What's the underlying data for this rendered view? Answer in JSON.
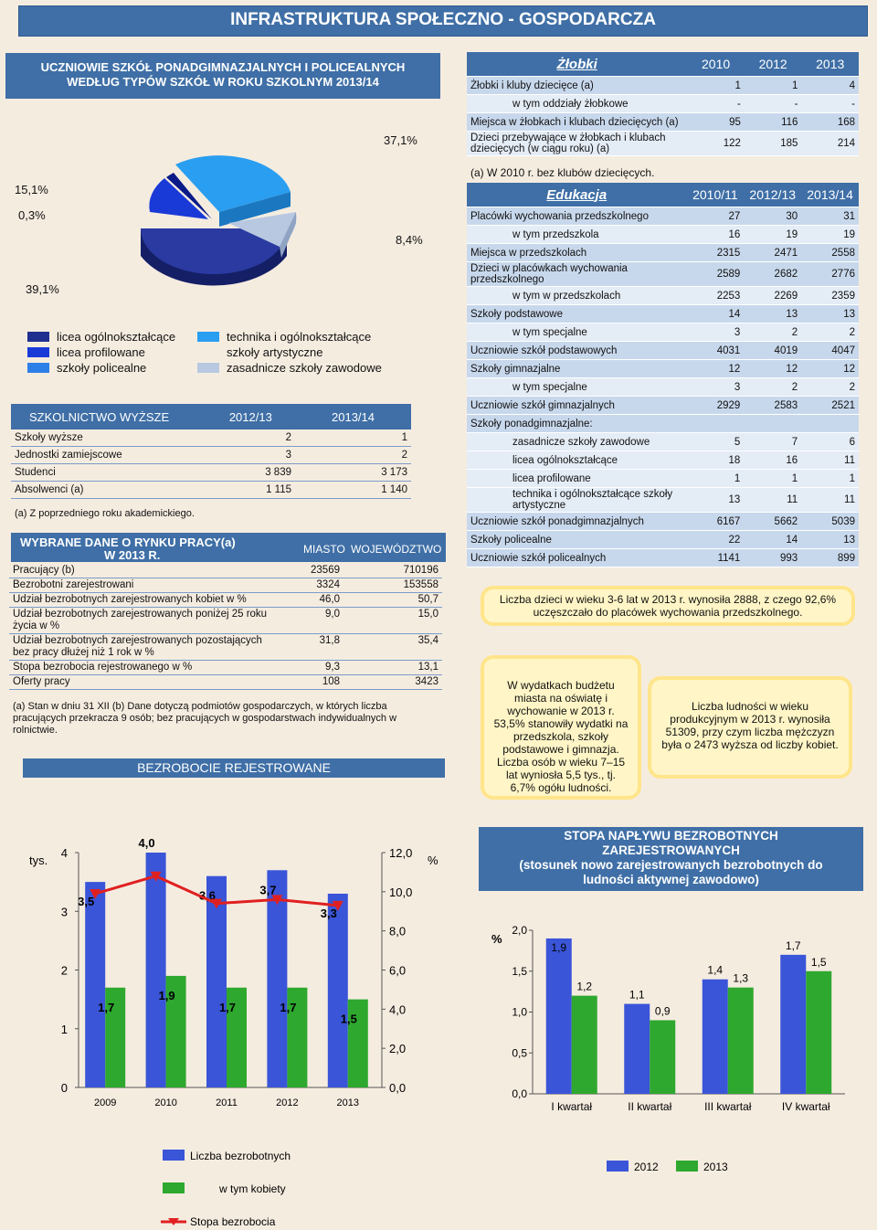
{
  "title": "INFRASTRUKTURA SPOŁECZNO - GOSPODARCZA",
  "pie": {
    "heading_line1": "UCZNIOWIE SZKÓŁ PONADGIMNAZJALNYCH I POLICEALNYCH",
    "heading_line2": "WEDŁUG TYPÓW SZKÓŁ W ROKU SZKOLNYM 2013/14",
    "labels": [
      "39,1%",
      "15,1%",
      "0,3%",
      "37,1%",
      "8,4%"
    ],
    "legend_left": [
      "licea ogólnokształcące",
      "licea profilowane",
      "szkoły policealne"
    ],
    "legend_right": [
      "technika i ogólnokształcące",
      "szkoły artystyczne",
      "zasadnicze szkoły zawodowe"
    ],
    "colors": {
      "licea_og": "#1f2f8f",
      "licea_prof": "#1a3ad8",
      "policealne": "#2f7fe8",
      "technika": "#2a9ef0",
      "zasadnicze": "#b8c8e0"
    }
  },
  "higher": {
    "header": [
      "SZKOLNICTWO WYŻSZE",
      "2012/13",
      "2013/14"
    ],
    "rows": [
      [
        "Szkoły wyższe",
        "2",
        "1"
      ],
      [
        "Jednostki zamiejscowe",
        "3",
        "2"
      ],
      [
        "Studenci",
        "3 839",
        "3 173"
      ],
      [
        "Absolwenci (a)",
        "1 115",
        "1 140"
      ]
    ],
    "note": "(a) Z poprzedniego roku akademickiego."
  },
  "labour": {
    "title_line1": "WYBRANE DANE O RYNKU PRACY(a)",
    "title_line2": "W 2013 R.",
    "col1": "MIASTO",
    "col2": "WOJEWÓDZTWO",
    "rows": [
      [
        "Pracujący (b)",
        "23569",
        "710196"
      ],
      [
        "Bezrobotni zarejestrowani",
        "3324",
        "153558"
      ],
      [
        "Udział bezrobotnych zarejestrowanych kobiet w %",
        "46,0",
        "50,7"
      ],
      [
        "Udział bezrobotnych zarejestrowanych poniżej 25 roku życia w %",
        "9,0",
        "15,0"
      ],
      [
        "Udział bezrobotnych zarejestrowanych pozostających bez pracy dłużej niż 1 rok w %",
        "31,8",
        "35,4"
      ],
      [
        "Stopa bezrobocia rejestrowanego w %",
        "9,3",
        "13,1"
      ],
      [
        "Oferty pracy",
        "108",
        "3423"
      ]
    ],
    "note": "(a) Stan w dniu 31 XII (b) Dane dotyczą podmiotów gospodarczych, w których liczba pracujących przekracza 9 osób; bez pracujących w gospodarstwach indywidualnych w rolnictwie."
  },
  "zlobki": {
    "header": [
      "Żłobki",
      "2010",
      "2012",
      "2013"
    ],
    "rows": [
      {
        "label": "Żłobki i kluby dziecięce (a)",
        "v": [
          "1",
          "1",
          "4"
        ],
        "indent": false
      },
      {
        "label": "w tym oddziały żłobkowe",
        "v": [
          "-",
          "-",
          "-"
        ],
        "indent": true
      },
      {
        "label": "Miejsca w żłobkach i klubach dziecięcych (a)",
        "v": [
          "95",
          "116",
          "168"
        ],
        "indent": false
      },
      {
        "label": "Dzieci przebywające w żłobkach i klubach dziecięcych (w ciągu roku) (a)",
        "v": [
          "122",
          "185",
          "214"
        ],
        "indent": false
      }
    ],
    "note": "(a) W 2010 r. bez klubów dziecięcych."
  },
  "edukacja": {
    "header": [
      "Edukacja",
      "2010/11",
      "2012/13",
      "2013/14"
    ],
    "rows": [
      {
        "label": "Placówki wychowania przedszkolnego",
        "v": [
          "27",
          "30",
          "31"
        ],
        "indent": false
      },
      {
        "label": "w tym przedszkola",
        "v": [
          "16",
          "19",
          "19"
        ],
        "indent": true
      },
      {
        "label": "Miejsca w przedszkolach",
        "v": [
          "2315",
          "2471",
          "2558"
        ],
        "indent": false
      },
      {
        "label": "Dzieci w placówkach wychowania przedszkolnego",
        "v": [
          "2589",
          "2682",
          "2776"
        ],
        "indent": false
      },
      {
        "label": "w tym w przedszkolach",
        "v": [
          "2253",
          "2269",
          "2359"
        ],
        "indent": true
      },
      {
        "label": "Szkoły podstawowe",
        "v": [
          "14",
          "13",
          "13"
        ],
        "indent": false
      },
      {
        "label": "w tym specjalne",
        "v": [
          "3",
          "2",
          "2"
        ],
        "indent": true
      },
      {
        "label": "Uczniowie szkół podstawowych",
        "v": [
          "4031",
          "4019",
          "4047"
        ],
        "indent": false
      },
      {
        "label": "Szkoły gimnazjalne",
        "v": [
          "12",
          "12",
          "12"
        ],
        "indent": false
      },
      {
        "label": "w tym specjalne",
        "v": [
          "3",
          "2",
          "2"
        ],
        "indent": true
      },
      {
        "label": "Uczniowie szkół gimnazjalnych",
        "v": [
          "2929",
          "2583",
          "2521"
        ],
        "indent": false
      },
      {
        "label": "Szkoły ponadgimnazjalne:",
        "v": [
          "",
          "",
          ""
        ],
        "indent": false
      },
      {
        "label": "zasadnicze szkoły zawodowe",
        "v": [
          "5",
          "7",
          "6"
        ],
        "indent": true
      },
      {
        "label": "licea ogólnokształcące",
        "v": [
          "18",
          "16",
          "11"
        ],
        "indent": true
      },
      {
        "label": "licea profilowane",
        "v": [
          "1",
          "1",
          "1"
        ],
        "indent": true
      },
      {
        "label": "technika i ogólnokształcące szkoły artystyczne",
        "v": [
          "13",
          "11",
          "11"
        ],
        "indent": true
      },
      {
        "label": "Uczniowie szkół ponadgimnazjalnych",
        "v": [
          "6167",
          "5662",
          "5039"
        ],
        "indent": false
      },
      {
        "label": "Szkoły policealne",
        "v": [
          "22",
          "14",
          "13"
        ],
        "indent": false
      },
      {
        "label": "Uczniowie szkół policealnych",
        "v": [
          "1141",
          "993",
          "899"
        ],
        "indent": false
      }
    ]
  },
  "bubbles": {
    "b1": "Liczba dzieci w wieku 3-6 lat w 2013 r. wynosiła 2888, z czego 92,6% uczęszczało do placówek wychowania przedszkolnego.",
    "b2": "W wydatkach budżetu miasta na oświatę i wychowanie w 2013 r. 53,5% stanowiły wydatki na przedszkola, szkoły podstawowe i gimnazja. Liczba osób w wieku 7–15 lat wyniosła 5,5 tys., tj. 6,7% ogółu ludności.",
    "b3": "Liczba ludności w wieku produkcyjnym w 2013 r. wynosiła 51309, przy czym liczba mężczyzn była o 2473 wyższa od liczby kobiet."
  },
  "bezrobocie_title": "BEZROBOCIE REJESTROWANE",
  "chart_data": [
    {
      "type": "bar",
      "categories": [
        "2009",
        "2010",
        "2011",
        "2012",
        "2013"
      ],
      "series": [
        {
          "name": "Liczba bezrobotnych",
          "values": [
            3.5,
            4.0,
            3.6,
            3.7,
            3.3
          ],
          "labels": [
            "3,5",
            "4,0",
            "3,6",
            "3,7",
            "3,3"
          ]
        },
        {
          "name": "w tym kobiety",
          "values": [
            1.7,
            1.9,
            1.7,
            1.7,
            1.5
          ],
          "labels": [
            "1,7",
            "1,9",
            "1,7",
            "1,7",
            "1,5"
          ]
        },
        {
          "name": "Stopa bezrobocia",
          "type": "line",
          "values": [
            9.9,
            10.8,
            9.4,
            9.6,
            9.3
          ]
        }
      ],
      "ylabel": "tys.",
      "y2label": "%",
      "ylim": [
        0,
        4
      ],
      "y2lim": [
        0,
        12
      ],
      "yticks": [
        "0",
        "1",
        "2",
        "3",
        "4"
      ],
      "y2ticks": [
        "0,0",
        "2,0",
        "4,0",
        "6,0",
        "8,0",
        "10,0",
        "12,0"
      ],
      "colors": {
        "bar1": "#3a55d8",
        "bar2": "#2ea82e",
        "line": "#e02020"
      }
    },
    {
      "type": "bar",
      "title_line1": "STOPA NAPŁYWU BEZROBOTNYCH",
      "title_line2": "ZAREJESTROWANYCH",
      "title_line3": "(stosunek nowo zarejestrowanych bezrobotnych do",
      "title_line4": "ludności aktywnej zawodowo)",
      "categories": [
        "I kwartał",
        "II kwartał",
        "III kwartał",
        "IV kwartał"
      ],
      "series": [
        {
          "name": "2012",
          "values": [
            1.9,
            1.1,
            1.4,
            1.7
          ],
          "labels": [
            "1,9",
            "1,1",
            "1,4",
            "1,7"
          ]
        },
        {
          "name": "2013",
          "values": [
            1.2,
            0.9,
            1.3,
            1.5
          ],
          "labels": [
            "1,2",
            "0,9",
            "1,3",
            "1,5"
          ]
        }
      ],
      "ylabel": "%",
      "ylim": [
        0,
        2
      ],
      "yticks": [
        "0,0",
        "0,5",
        "1,0",
        "1,5",
        "2,0"
      ],
      "colors": {
        "bar1": "#3a55d8",
        "bar2": "#2ea82e"
      }
    }
  ]
}
